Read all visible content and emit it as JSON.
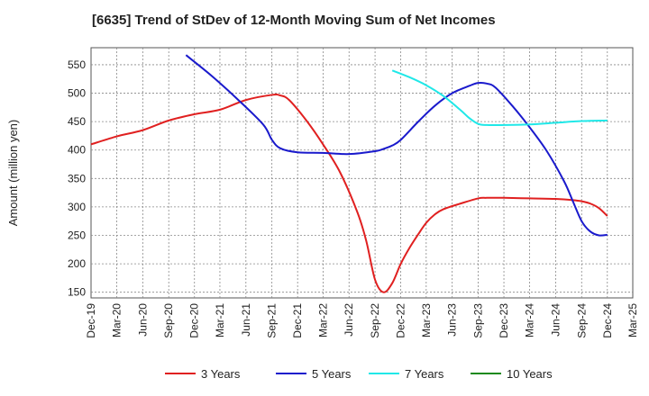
{
  "chart_data": {
    "type": "line",
    "title": "[6635]  Trend of StDev of 12-Month Moving Sum of Net Incomes",
    "xlabel": "",
    "ylabel": "Amount (million yen)",
    "ylim": [
      140,
      580
    ],
    "yticks": [
      150,
      200,
      250,
      300,
      350,
      400,
      450,
      500,
      550
    ],
    "grid": true,
    "legend_position": "bottom",
    "x_tick_labels": [
      "Dec-19",
      "Mar-20",
      "Jun-20",
      "Sep-20",
      "Dec-20",
      "Mar-21",
      "Jun-21",
      "Sep-21",
      "Dec-21",
      "Mar-22",
      "Jun-22",
      "Sep-22",
      "Dec-22",
      "Mar-23",
      "Jun-23",
      "Sep-23",
      "Dec-23",
      "Mar-24",
      "Jun-24",
      "Sep-24",
      "Dec-24",
      "Mar-25"
    ],
    "series": [
      {
        "name": "3 Years",
        "color": "#e02020",
        "x": [
          "2019-12",
          "2020-03",
          "2020-06",
          "2020-09",
          "2020-12",
          "2021-03",
          "2021-06",
          "2021-09",
          "2021-10",
          "2021-11",
          "2022-01",
          "2022-03",
          "2022-05",
          "2022-07",
          "2022-08",
          "2022-09",
          "2022-10",
          "2022-11",
          "2022-12",
          "2023-01",
          "2023-02",
          "2023-03",
          "2023-04",
          "2023-05",
          "2023-07",
          "2023-09",
          "2023-10",
          "2023-12",
          "2024-03",
          "2024-06",
          "2024-08",
          "2024-09",
          "2024-10",
          "2024-11",
          "2024-12"
        ],
        "values": [
          410,
          424,
          435,
          452,
          463,
          471,
          488,
          497,
          496,
          488,
          452,
          410,
          360,
          290,
          240,
          172,
          150,
          166,
          200,
          228,
          252,
          272,
          287,
          296,
          306,
          315,
          316,
          316,
          315,
          314,
          312,
          310,
          306,
          298,
          284
        ]
      },
      {
        "name": "5 Years",
        "color": "#1a1acc",
        "x": [
          "2020-11",
          "2021-02",
          "2021-05",
          "2021-08",
          "2021-09",
          "2021-10",
          "2021-12",
          "2022-03",
          "2022-06",
          "2022-09",
          "2022-10",
          "2022-11",
          "2022-12",
          "2023-02",
          "2023-04",
          "2023-06",
          "2023-08",
          "2023-09",
          "2023-10",
          "2023-11",
          "2024-01",
          "2024-03",
          "2024-05",
          "2024-07",
          "2024-08",
          "2024-09",
          "2024-10",
          "2024-11",
          "2024-12"
        ],
        "values": [
          567,
          530,
          490,
          445,
          418,
          403,
          396,
          395,
          393,
          398,
          402,
          408,
          418,
          450,
          478,
          500,
          513,
          518,
          517,
          510,
          477,
          440,
          398,
          345,
          310,
          275,
          257,
          250,
          251
        ]
      },
      {
        "name": "7 Years",
        "color": "#20e8e8",
        "x": [
          "2022-11",
          "2023-01",
          "2023-03",
          "2023-05",
          "2023-07",
          "2023-08",
          "2023-09",
          "2023-10",
          "2023-12",
          "2024-03",
          "2024-06",
          "2024-09",
          "2024-12"
        ],
        "values": [
          540,
          528,
          514,
          495,
          470,
          456,
          446,
          444,
          444,
          445,
          448,
          451,
          452
        ]
      },
      {
        "name": "10 Years",
        "color": "#1a8a1a",
        "x": [],
        "values": []
      }
    ]
  }
}
